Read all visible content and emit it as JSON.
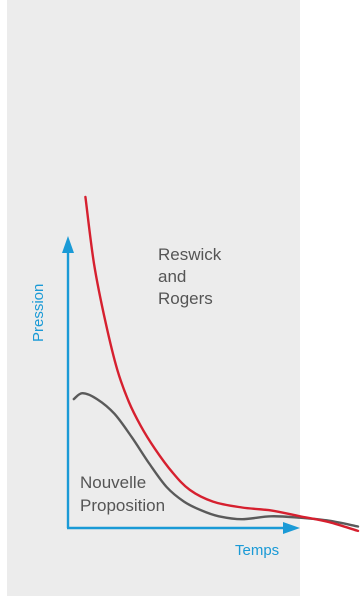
{
  "colors": {
    "panel": "#ececec",
    "axis": "#1a9ad6",
    "reswick_series": "#d6202f",
    "nouvelle_series": "#5a5a5a",
    "annotation_text": "#555555"
  },
  "chart_data": {
    "type": "line",
    "title": "",
    "xlabel": "Temps",
    "ylabel": "Pression",
    "xlim": [
      0,
      10
    ],
    "ylim": [
      0,
      10
    ],
    "grid": false,
    "axis_ticks": false,
    "series": [
      {
        "name": "Reswick and Rogers",
        "label_lines": [
          "Reswick",
          "and",
          "Rogers"
        ],
        "color": "#d6202f",
        "x": [
          0.6,
          0.9,
          1.3,
          1.7,
          2.1,
          2.5,
          3.0,
          3.6,
          4.2,
          5.0,
          6.0,
          7.0,
          8.0,
          9.0,
          10.0
        ],
        "y": [
          11.3,
          9.0,
          7.0,
          5.4,
          4.3,
          3.5,
          2.7,
          1.9,
          1.3,
          0.9,
          0.7,
          0.6,
          0.4,
          0.2,
          -0.1
        ]
      },
      {
        "name": "Nouvelle Proposition",
        "label_lines": [
          "Nouvelle",
          "Proposition"
        ],
        "color": "#5a5a5a",
        "x": [
          0.2,
          0.5,
          1.0,
          1.6,
          2.2,
          2.8,
          3.4,
          4.0,
          4.6,
          5.2,
          6.0,
          7.0,
          8.0,
          9.0,
          10.0
        ],
        "y": [
          4.4,
          4.6,
          4.4,
          3.9,
          3.1,
          2.2,
          1.4,
          0.9,
          0.6,
          0.4,
          0.3,
          0.4,
          0.35,
          0.25,
          0.05
        ]
      }
    ]
  }
}
